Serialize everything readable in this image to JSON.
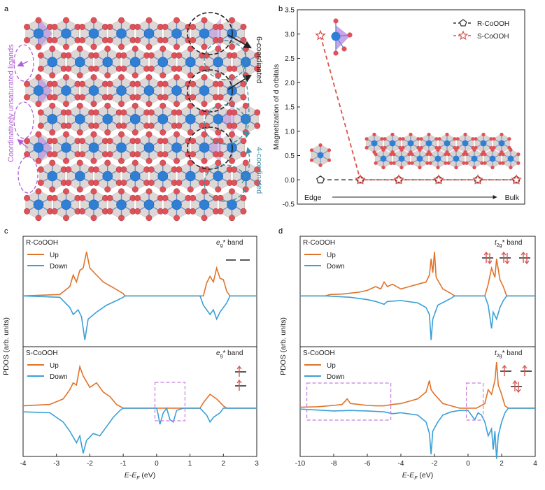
{
  "panels": {
    "a": {
      "label": "a",
      "left_annotation": "Coordinatively unsaturated ligands",
      "right_top_annotation": "6-coordinated",
      "right_bottom_annotation": "4-coordinated"
    },
    "b": {
      "label": "b"
    },
    "c": {
      "label": "c"
    },
    "d": {
      "label": "d"
    }
  },
  "colors": {
    "cobalt": "#2f7fd6",
    "oxygen": "#e0525a",
    "octahedron": "#cfc8c4",
    "highlight": "#b27ee0",
    "up_line": "#e0732a",
    "down_line": "#3aa0d8",
    "marker_red": "#d9534f",
    "edge_box": "#c77de0",
    "annotation_purple": "#b15fd8",
    "annotation_teal": "#3f8fa3"
  },
  "chart_data": [
    {
      "id": "b",
      "type": "line",
      "ylabel": "Magnetization of d orbitals",
      "ylim": [
        -0.5,
        3.5
      ],
      "yticks": [
        "-0.5",
        "0.0",
        "0.5",
        "1.0",
        "1.5",
        "2.0",
        "2.5",
        "3.0",
        "3.5"
      ],
      "x_left_label": "Edge",
      "x_right_label": "Bulk",
      "legend_position": "top-right",
      "series": [
        {
          "name": "R-CoOOH",
          "marker": "pentagon",
          "values": [
            0.0,
            0.0,
            0.0,
            0.0,
            0.0,
            0.0
          ]
        },
        {
          "name": "S-CoOOH",
          "marker": "star",
          "values": [
            2.97,
            0.0,
            0.0,
            0.0,
            0.0,
            0.0
          ]
        }
      ]
    },
    {
      "id": "c",
      "type": "line",
      "xlabel": "E-E",
      "xlabel_sub": "F",
      "xlabel_unit": " (eV)",
      "xlim": [
        -4,
        3
      ],
      "xticks": [
        "-4",
        "-3",
        "-2",
        "-1",
        "0",
        "1",
        "2",
        "3"
      ],
      "ylabel": "PDOS (arb. units)",
      "subplots": [
        {
          "title": "R-CoOOH",
          "band_label": "e",
          "band_sub": "g",
          "band_suffix": "* band",
          "legend": [
            "Up",
            "Down"
          ],
          "up": [
            [
              -4,
              0
            ],
            [
              -2.9,
              0.03
            ],
            [
              -2.6,
              0.2
            ],
            [
              -2.5,
              0.45
            ],
            [
              -2.4,
              0.3
            ],
            [
              -2.3,
              0.55
            ],
            [
              -2.2,
              0.6
            ],
            [
              -2.1,
              0.95
            ],
            [
              -2.0,
              0.6
            ],
            [
              -1.8,
              0.45
            ],
            [
              -1.6,
              0.3
            ],
            [
              -1.3,
              0.18
            ],
            [
              -1.0,
              0.05
            ],
            [
              -0.95,
              0
            ],
            [
              1.4,
              0
            ],
            [
              1.5,
              0.28
            ],
            [
              1.6,
              0.42
            ],
            [
              1.7,
              0.3
            ],
            [
              1.8,
              0.6
            ],
            [
              1.9,
              0.38
            ],
            [
              2.0,
              0.35
            ],
            [
              2.1,
              0.1
            ],
            [
              2.2,
              0
            ],
            [
              3,
              0
            ]
          ],
          "down": [
            [
              -4,
              0
            ],
            [
              -2.9,
              -0.03
            ],
            [
              -2.6,
              -0.25
            ],
            [
              -2.5,
              -0.4
            ],
            [
              -2.35,
              -0.3
            ],
            [
              -2.25,
              -0.45
            ],
            [
              -2.15,
              -0.95
            ],
            [
              -2.05,
              -0.5
            ],
            [
              -1.8,
              -0.35
            ],
            [
              -1.5,
              -0.2
            ],
            [
              -1.2,
              -0.1
            ],
            [
              -1.0,
              -0.03
            ],
            [
              -0.95,
              0
            ],
            [
              1.3,
              0
            ],
            [
              1.4,
              -0.2
            ],
            [
              1.6,
              -0.4
            ],
            [
              1.7,
              -0.3
            ],
            [
              1.8,
              -0.5
            ],
            [
              1.9,
              -0.35
            ],
            [
              2.1,
              -0.15
            ],
            [
              2.2,
              0
            ],
            [
              3,
              0
            ]
          ]
        },
        {
          "title": "S-CoOOH",
          "band_label": "e",
          "band_sub": "g",
          "band_suffix": "* band",
          "legend": [
            "Up",
            "Down"
          ],
          "up": [
            [
              -4,
              0.05
            ],
            [
              -3.2,
              0.08
            ],
            [
              -2.8,
              0.2
            ],
            [
              -2.6,
              0.4
            ],
            [
              -2.5,
              0.55
            ],
            [
              -2.4,
              0.5
            ],
            [
              -2.3,
              0.9
            ],
            [
              -2.2,
              0.7
            ],
            [
              -2.0,
              0.45
            ],
            [
              -1.8,
              0.55
            ],
            [
              -1.6,
              0.35
            ],
            [
              -1.4,
              0.25
            ],
            [
              -1.2,
              0.08
            ],
            [
              -1.0,
              0
            ],
            [
              1.3,
              0
            ],
            [
              1.4,
              0.12
            ],
            [
              1.6,
              0.3
            ],
            [
              1.8,
              0.2
            ],
            [
              2.0,
              0.05
            ],
            [
              2.1,
              0
            ],
            [
              3,
              0
            ]
          ],
          "down": [
            [
              -4,
              -0.08
            ],
            [
              -3.2,
              -0.1
            ],
            [
              -3.0,
              -0.2
            ],
            [
              -2.8,
              -0.3
            ],
            [
              -2.6,
              -0.5
            ],
            [
              -2.4,
              -0.75
            ],
            [
              -2.3,
              -0.6
            ],
            [
              -2.2,
              -0.98
            ],
            [
              -2.1,
              -0.7
            ],
            [
              -1.9,
              -0.55
            ],
            [
              -1.7,
              -0.6
            ],
            [
              -1.5,
              -0.4
            ],
            [
              -1.3,
              -0.2
            ],
            [
              -1.1,
              -0.05
            ],
            [
              -1.0,
              0
            ],
            [
              0.0,
              0
            ],
            [
              0.05,
              -0.15
            ],
            [
              0.1,
              -0.35
            ],
            [
              0.2,
              -0.1
            ],
            [
              0.3,
              0
            ],
            [
              0.4,
              -0.25
            ],
            [
              0.5,
              -0.3
            ],
            [
              0.6,
              -0.05
            ],
            [
              0.8,
              0
            ],
            [
              1.3,
              0
            ],
            [
              1.5,
              -0.15
            ],
            [
              1.6,
              -0.3
            ],
            [
              1.7,
              -0.2
            ],
            [
              1.9,
              -0.1
            ],
            [
              2.0,
              0
            ],
            [
              3,
              0
            ]
          ]
        }
      ]
    },
    {
      "id": "d",
      "type": "line",
      "xlabel": "E-E",
      "xlabel_sub": "F",
      "xlabel_unit": " (eV)",
      "xlim": [
        -10,
        4
      ],
      "xticks": [
        "-10",
        "-8",
        "-6",
        "-4",
        "-2",
        "0",
        "2",
        "4"
      ],
      "ylabel": "PDOS (arb. units)",
      "subplots": [
        {
          "title": "R-CoOOH",
          "band_label": "t",
          "band_sub": "2g",
          "band_suffix": "* band",
          "legend": [
            "Up",
            "Down"
          ],
          "up": [
            [
              -10,
              0
            ],
            [
              -8.5,
              0
            ],
            [
              -8.2,
              0.03
            ],
            [
              -7.5,
              0.04
            ],
            [
              -6.5,
              0.08
            ],
            [
              -6.0,
              0.12
            ],
            [
              -5.5,
              0.2
            ],
            [
              -5.2,
              0.15
            ],
            [
              -5.0,
              0.3
            ],
            [
              -4.8,
              0.2
            ],
            [
              -4.5,
              0.25
            ],
            [
              -4.0,
              0.15
            ],
            [
              -3.5,
              0.2
            ],
            [
              -3.0,
              0.25
            ],
            [
              -2.5,
              0.3
            ],
            [
              -2.3,
              0.45
            ],
            [
              -2.2,
              0.8
            ],
            [
              -2.1,
              0.5
            ],
            [
              -2.0,
              0.95
            ],
            [
              -1.9,
              0.4
            ],
            [
              -1.5,
              0.15
            ],
            [
              -1.0,
              0.05
            ],
            [
              -0.8,
              0
            ],
            [
              1.0,
              0
            ],
            [
              1.2,
              0.25
            ],
            [
              1.4,
              0.6
            ],
            [
              1.6,
              0.4
            ],
            [
              1.7,
              0.8
            ],
            [
              1.9,
              0.35
            ],
            [
              2.1,
              0.2
            ],
            [
              2.3,
              0
            ],
            [
              4,
              0
            ]
          ],
          "down": [
            [
              -10,
              0
            ],
            [
              -8.5,
              0
            ],
            [
              -7.0,
              -0.03
            ],
            [
              -6.0,
              -0.08
            ],
            [
              -5.5,
              -0.12
            ],
            [
              -5.0,
              -0.18
            ],
            [
              -4.8,
              -0.12
            ],
            [
              -4.0,
              -0.1
            ],
            [
              -3.0,
              -0.15
            ],
            [
              -2.5,
              -0.25
            ],
            [
              -2.3,
              -0.4
            ],
            [
              -2.2,
              -0.95
            ],
            [
              -2.1,
              -0.5
            ],
            [
              -1.8,
              -0.2
            ],
            [
              -1.0,
              -0.05
            ],
            [
              -0.8,
              0
            ],
            [
              1.0,
              0
            ],
            [
              1.2,
              -0.2
            ],
            [
              1.4,
              -0.7
            ],
            [
              1.5,
              -0.35
            ],
            [
              1.7,
              -0.5
            ],
            [
              1.9,
              -0.25
            ],
            [
              2.1,
              -0.1
            ],
            [
              2.3,
              0
            ],
            [
              4,
              0
            ]
          ]
        },
        {
          "title": "S-CoOOH",
          "band_label": "t",
          "band_sub": "2g",
          "band_suffix": "* band",
          "legend": [
            "Up",
            "Down"
          ],
          "up": [
            [
              -10,
              0.02
            ],
            [
              -9.0,
              0.03
            ],
            [
              -8.0,
              0.06
            ],
            [
              -7.5,
              0.08
            ],
            [
              -7.2,
              0.2
            ],
            [
              -7.0,
              0.1
            ],
            [
              -6.5,
              0.08
            ],
            [
              -6.0,
              0.06
            ],
            [
              -5.5,
              0.05
            ],
            [
              -5.0,
              0.05
            ],
            [
              -4.5,
              0.08
            ],
            [
              -4.0,
              0.1
            ],
            [
              -3.5,
              0.15
            ],
            [
              -3.0,
              0.2
            ],
            [
              -2.5,
              0.35
            ],
            [
              -2.3,
              0.6
            ],
            [
              -2.2,
              0.4
            ],
            [
              -2.0,
              0.3
            ],
            [
              -1.5,
              0.1
            ],
            [
              -1.0,
              0.05
            ],
            [
              -0.5,
              0
            ],
            [
              0.5,
              0
            ],
            [
              1.0,
              0.1
            ],
            [
              1.2,
              0.4
            ],
            [
              1.4,
              0.3
            ],
            [
              1.6,
              0.6
            ],
            [
              1.7,
              1.0
            ],
            [
              1.8,
              0.5
            ],
            [
              2.0,
              0.3
            ],
            [
              2.2,
              0.05
            ],
            [
              2.4,
              0
            ],
            [
              4,
              0
            ]
          ],
          "down": [
            [
              -10,
              -0.02
            ],
            [
              -9.0,
              -0.04
            ],
            [
              -8.0,
              -0.06
            ],
            [
              -7.0,
              -0.05
            ],
            [
              -6.0,
              -0.06
            ],
            [
              -5.0,
              -0.08
            ],
            [
              -4.5,
              -0.12
            ],
            [
              -4.0,
              -0.1
            ],
            [
              -3.0,
              -0.15
            ],
            [
              -2.5,
              -0.3
            ],
            [
              -2.3,
              -0.55
            ],
            [
              -2.2,
              -1.0
            ],
            [
              -2.1,
              -0.5
            ],
            [
              -1.8,
              -0.3
            ],
            [
              -1.5,
              -0.15
            ],
            [
              -1.0,
              -0.08
            ],
            [
              -0.5,
              -0.05
            ],
            [
              0.0,
              -0.05
            ],
            [
              0.2,
              -0.15
            ],
            [
              0.4,
              -0.25
            ],
            [
              0.6,
              -0.1
            ],
            [
              0.8,
              -0.15
            ],
            [
              1.0,
              -0.3
            ],
            [
              1.2,
              -0.6
            ],
            [
              1.4,
              -0.45
            ],
            [
              1.5,
              -0.9
            ],
            [
              1.6,
              -0.5
            ],
            [
              1.7,
              -1.1
            ],
            [
              1.8,
              -0.6
            ],
            [
              2.0,
              -0.3
            ],
            [
              2.2,
              -0.1
            ],
            [
              2.4,
              0
            ],
            [
              4,
              0
            ]
          ]
        }
      ]
    }
  ]
}
